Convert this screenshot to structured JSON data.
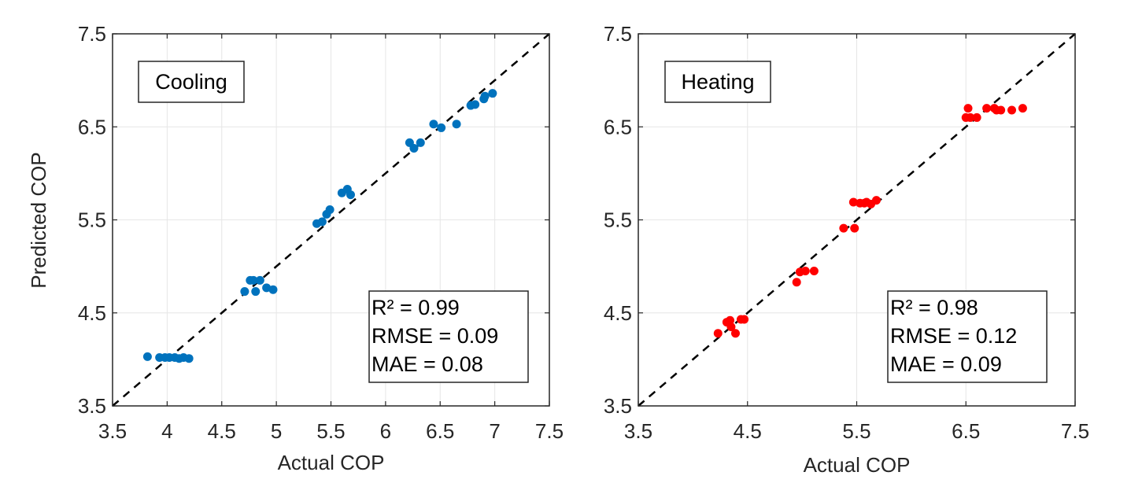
{
  "chart_data": [
    {
      "type": "scatter",
      "panel": "left",
      "label": "Cooling",
      "xlabel": "Actual COP",
      "ylabel": "Predicted COP",
      "xlim": [
        3.5,
        7.5
      ],
      "ylim": [
        3.5,
        7.5
      ],
      "xticks": [
        "3.5",
        "4",
        "4.5",
        "5",
        "5.5",
        "6",
        "6.5",
        "7",
        "7.5"
      ],
      "xtick_values": [
        3.5,
        4,
        4.5,
        5,
        5.5,
        6,
        6.5,
        7,
        7.5
      ],
      "yticks": [
        "3.5",
        "4.5",
        "5.5",
        "6.5",
        "7.5"
      ],
      "ytick_values": [
        3.5,
        4.5,
        5.5,
        6.5,
        7.5
      ],
      "grid": true,
      "reference_line": "y = x (dashed)",
      "marker_color": "#0072BD",
      "stats": [
        "R² = 0.99",
        "RMSE = 0.09",
        "MAE = 0.08"
      ],
      "points": [
        [
          3.82,
          4.03
        ],
        [
          3.93,
          4.02
        ],
        [
          3.98,
          4.02
        ],
        [
          4.02,
          4.02
        ],
        [
          4.07,
          4.02
        ],
        [
          4.11,
          4.01
        ],
        [
          4.15,
          4.02
        ],
        [
          4.2,
          4.01
        ],
        [
          4.71,
          4.73
        ],
        [
          4.76,
          4.85
        ],
        [
          4.79,
          4.85
        ],
        [
          4.81,
          4.73
        ],
        [
          4.85,
          4.85
        ],
        [
          4.91,
          4.77
        ],
        [
          4.97,
          4.75
        ],
        [
          5.37,
          5.46
        ],
        [
          5.42,
          5.48
        ],
        [
          5.46,
          5.56
        ],
        [
          5.49,
          5.61
        ],
        [
          5.6,
          5.79
        ],
        [
          5.65,
          5.83
        ],
        [
          5.68,
          5.77
        ],
        [
          6.22,
          6.33
        ],
        [
          6.26,
          6.27
        ],
        [
          6.32,
          6.33
        ],
        [
          6.44,
          6.53
        ],
        [
          6.51,
          6.49
        ],
        [
          6.65,
          6.53
        ],
        [
          6.78,
          6.73
        ],
        [
          6.82,
          6.74
        ],
        [
          6.9,
          6.8
        ],
        [
          6.91,
          6.83
        ],
        [
          6.98,
          6.86
        ]
      ]
    },
    {
      "type": "scatter",
      "panel": "right",
      "label": "Heating",
      "xlabel": "Actual COP",
      "ylabel": "",
      "xlim": [
        3.5,
        7.5
      ],
      "ylim": [
        3.5,
        7.5
      ],
      "xticks": [
        "3.5",
        "4.5",
        "5.5",
        "6.5",
        "7.5"
      ],
      "xtick_values": [
        3.5,
        4.5,
        5.5,
        6.5,
        7.5
      ],
      "yticks": [
        "3.5",
        "4.5",
        "5.5",
        "6.5",
        "7.5"
      ],
      "ytick_values": [
        3.5,
        4.5,
        5.5,
        6.5,
        7.5
      ],
      "grid": true,
      "reference_line": "y = x (dashed)",
      "marker_color": "#FF0000",
      "stats": [
        "R² = 0.98",
        "RMSE = 0.12",
        "MAE = 0.09"
      ],
      "points": [
        [
          4.23,
          4.28
        ],
        [
          4.31,
          4.4
        ],
        [
          4.34,
          4.42
        ],
        [
          4.35,
          4.35
        ],
        [
          4.39,
          4.28
        ],
        [
          4.44,
          4.43
        ],
        [
          4.47,
          4.43
        ],
        [
          4.95,
          4.83
        ],
        [
          4.98,
          4.94
        ],
        [
          5.03,
          4.95
        ],
        [
          5.11,
          4.95
        ],
        [
          5.38,
          5.41
        ],
        [
          5.48,
          5.41
        ],
        [
          5.47,
          5.69
        ],
        [
          5.53,
          5.68
        ],
        [
          5.57,
          5.68
        ],
        [
          5.59,
          5.69
        ],
        [
          5.63,
          5.67
        ],
        [
          5.68,
          5.71
        ],
        [
          6.5,
          6.6
        ],
        [
          6.52,
          6.7
        ],
        [
          6.54,
          6.6
        ],
        [
          6.6,
          6.6
        ],
        [
          6.69,
          6.7
        ],
        [
          6.76,
          6.7
        ],
        [
          6.78,
          6.68
        ],
        [
          6.82,
          6.68
        ],
        [
          6.92,
          6.68
        ],
        [
          7.02,
          6.7
        ]
      ]
    }
  ]
}
